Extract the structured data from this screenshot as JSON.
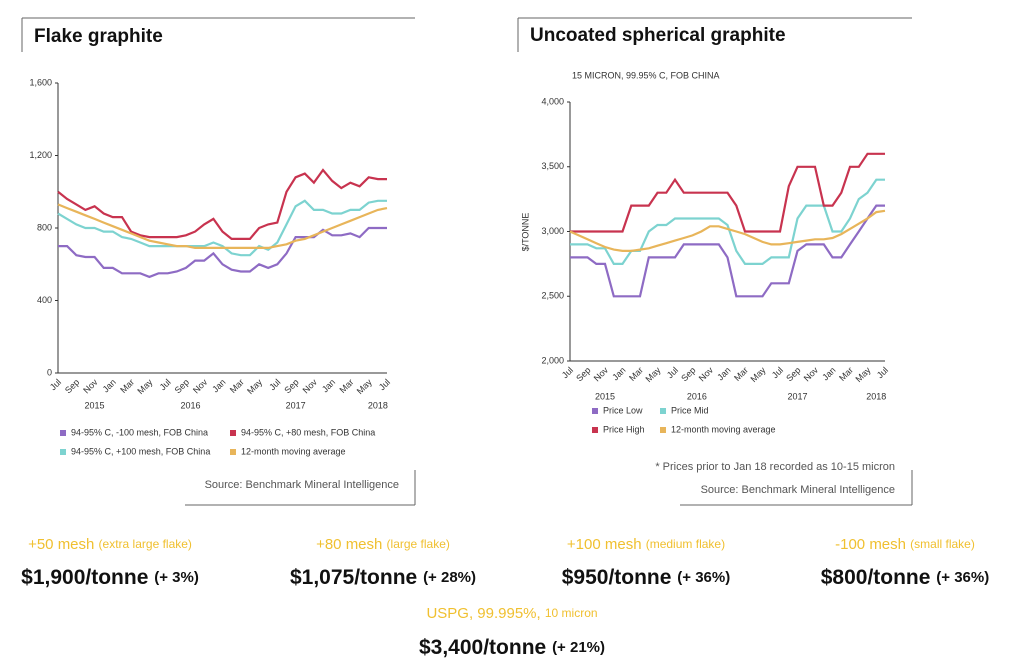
{
  "chart_data": [
    {
      "type": "line",
      "title": "Flake graphite",
      "source": "Source: Benchmark Mineral Intelligence",
      "categories": [
        "Jul",
        null,
        "Sep",
        null,
        "Nov",
        null,
        "Jan",
        null,
        "Mar",
        null,
        "May",
        null,
        "Jul",
        null,
        "Sep",
        null,
        "Nov",
        null,
        "Jan",
        null,
        "Mar",
        null,
        "May",
        null,
        "Jul",
        null,
        "Sep",
        null,
        "Nov",
        null,
        "Jan",
        null,
        "Mar",
        null,
        "May",
        null,
        "Jul"
      ],
      "year_labels": [
        "2015",
        "2016",
        "2017",
        "2018"
      ],
      "ylim": [
        0,
        1600
      ],
      "yticks": [
        0,
        400,
        800,
        {
          "value": 1200,
          "label": "1,200"
        },
        {
          "value": 1600,
          "label": "1,600"
        }
      ],
      "series": [
        {
          "name": "94-95% C, -100 mesh, FOB China",
          "color": "#8e6bc4",
          "values": [
            700,
            700,
            650,
            640,
            640,
            580,
            580,
            550,
            550,
            550,
            530,
            550,
            550,
            560,
            580,
            620,
            620,
            660,
            600,
            570,
            560,
            560,
            600,
            580,
            600,
            660,
            750,
            750,
            750,
            790,
            760,
            760,
            770,
            750,
            800,
            800,
            800
          ]
        },
        {
          "name": "94-95% C, +80 mesh, FOB China",
          "color": "#c8334f",
          "values": [
            1000,
            960,
            930,
            900,
            920,
            880,
            860,
            860,
            780,
            760,
            750,
            750,
            750,
            750,
            760,
            780,
            820,
            850,
            780,
            740,
            740,
            740,
            800,
            820,
            830,
            1000,
            1080,
            1100,
            1050,
            1120,
            1060,
            1020,
            1050,
            1030,
            1080,
            1070,
            1070
          ]
        },
        {
          "name": "94-95% C, +100 mesh, FOB China",
          "color": "#7dd3d0",
          "values": [
            880,
            850,
            820,
            800,
            800,
            780,
            780,
            750,
            740,
            720,
            700,
            700,
            700,
            700,
            700,
            700,
            700,
            720,
            700,
            660,
            650,
            650,
            700,
            680,
            720,
            820,
            920,
            950,
            900,
            900,
            880,
            880,
            900,
            900,
            940,
            950,
            950
          ]
        },
        {
          "name": "12-month moving average",
          "color": "#e8b55a",
          "values": [
            930,
            910,
            890,
            870,
            850,
            830,
            810,
            790,
            770,
            750,
            730,
            720,
            710,
            700,
            700,
            690,
            690,
            690,
            690,
            690,
            690,
            690,
            690,
            690,
            700,
            710,
            730,
            740,
            760,
            780,
            800,
            820,
            840,
            860,
            880,
            900,
            910
          ]
        }
      ]
    },
    {
      "type": "line",
      "title": "Uncoated spherical graphite",
      "subtitle": "15 MICRON, 99.95% C, FOB CHINA",
      "y_label": "$/TONNE",
      "note": "* Prices prior to Jan 18 recorded as 10-15 micron",
      "source": "Source: Benchmark Mineral Intelligence",
      "categories": [
        "Jul",
        null,
        "Sep",
        null,
        "Nov",
        null,
        "Jan",
        null,
        "Mar",
        null,
        "May",
        null,
        "Jul",
        null,
        "Sep",
        null,
        "Nov",
        null,
        "Jan",
        null,
        "Mar",
        null,
        "May",
        null,
        "Jul",
        null,
        "Sep",
        null,
        "Nov",
        null,
        "Jan",
        null,
        "Mar",
        null,
        "May",
        null,
        "Jul"
      ],
      "year_labels": [
        "2015",
        "2016",
        "2017",
        "2018"
      ],
      "ylim": [
        2000,
        4000
      ],
      "yticks": [
        {
          "value": 2000,
          "label": "2,000"
        },
        {
          "value": 2500,
          "label": "2,500"
        },
        {
          "value": 3000,
          "label": "3,000"
        },
        {
          "value": 3500,
          "label": "3,500"
        },
        {
          "value": 4000,
          "label": "4,000"
        }
      ],
      "series": [
        {
          "name": "Price Low",
          "color": "#8e6bc4",
          "values": [
            2800,
            2800,
            2800,
            2750,
            2750,
            2500,
            2500,
            2500,
            2500,
            2800,
            2800,
            2800,
            2800,
            2900,
            2900,
            2900,
            2900,
            2900,
            2800,
            2500,
            2500,
            2500,
            2500,
            2600,
            2600,
            2600,
            2850,
            2900,
            2900,
            2900,
            2800,
            2800,
            2900,
            3000,
            3100,
            3200,
            3200
          ]
        },
        {
          "name": "Price Mid",
          "color": "#7dd3d0",
          "values": [
            2900,
            2900,
            2900,
            2870,
            2870,
            2750,
            2750,
            2850,
            2850,
            3000,
            3050,
            3050,
            3100,
            3100,
            3100,
            3100,
            3100,
            3100,
            3050,
            2850,
            2750,
            2750,
            2750,
            2800,
            2800,
            2800,
            3100,
            3200,
            3200,
            3200,
            3000,
            3000,
            3100,
            3250,
            3300,
            3400,
            3400
          ]
        },
        {
          "name": "Price High",
          "color": "#c8334f",
          "values": [
            3000,
            3000,
            3000,
            3000,
            3000,
            3000,
            3000,
            3200,
            3200,
            3200,
            3300,
            3300,
            3400,
            3300,
            3300,
            3300,
            3300,
            3300,
            3300,
            3200,
            3000,
            3000,
            3000,
            3000,
            3000,
            3350,
            3500,
            3500,
            3500,
            3200,
            3200,
            3300,
            3500,
            3500,
            3600,
            3600,
            3600
          ]
        },
        {
          "name": "12-month moving average",
          "color": "#e8b55a",
          "values": [
            3000,
            2970,
            2940,
            2910,
            2880,
            2860,
            2850,
            2850,
            2860,
            2870,
            2890,
            2910,
            2930,
            2950,
            2970,
            3000,
            3040,
            3040,
            3020,
            3000,
            2980,
            2950,
            2920,
            2900,
            2900,
            2910,
            2920,
            2930,
            2940,
            2940,
            2950,
            2980,
            3020,
            3060,
            3100,
            3150,
            3160
          ]
        }
      ]
    }
  ],
  "prices": [
    {
      "grade": "+50 mesh",
      "note": "(extra large flake)",
      "price": "$1,900/tonne",
      "change": "(+ 3%)"
    },
    {
      "grade": "+80 mesh",
      "note": "(large flake)",
      "price": "$1,075/tonne",
      "change": "(+ 28%)"
    },
    {
      "grade": "+100 mesh",
      "note": "(medium flake)",
      "price": "$950/tonne",
      "change": "(+ 36%)"
    },
    {
      "grade": "-100 mesh",
      "note": "(small flake)",
      "price": "$800/tonne",
      "change": "(+ 36%)"
    }
  ],
  "uspg": {
    "grade": "USPG, 99.995%,",
    "note": "10 micron",
    "price": "$3,400/tonne",
    "change": "(+ 21%)"
  }
}
